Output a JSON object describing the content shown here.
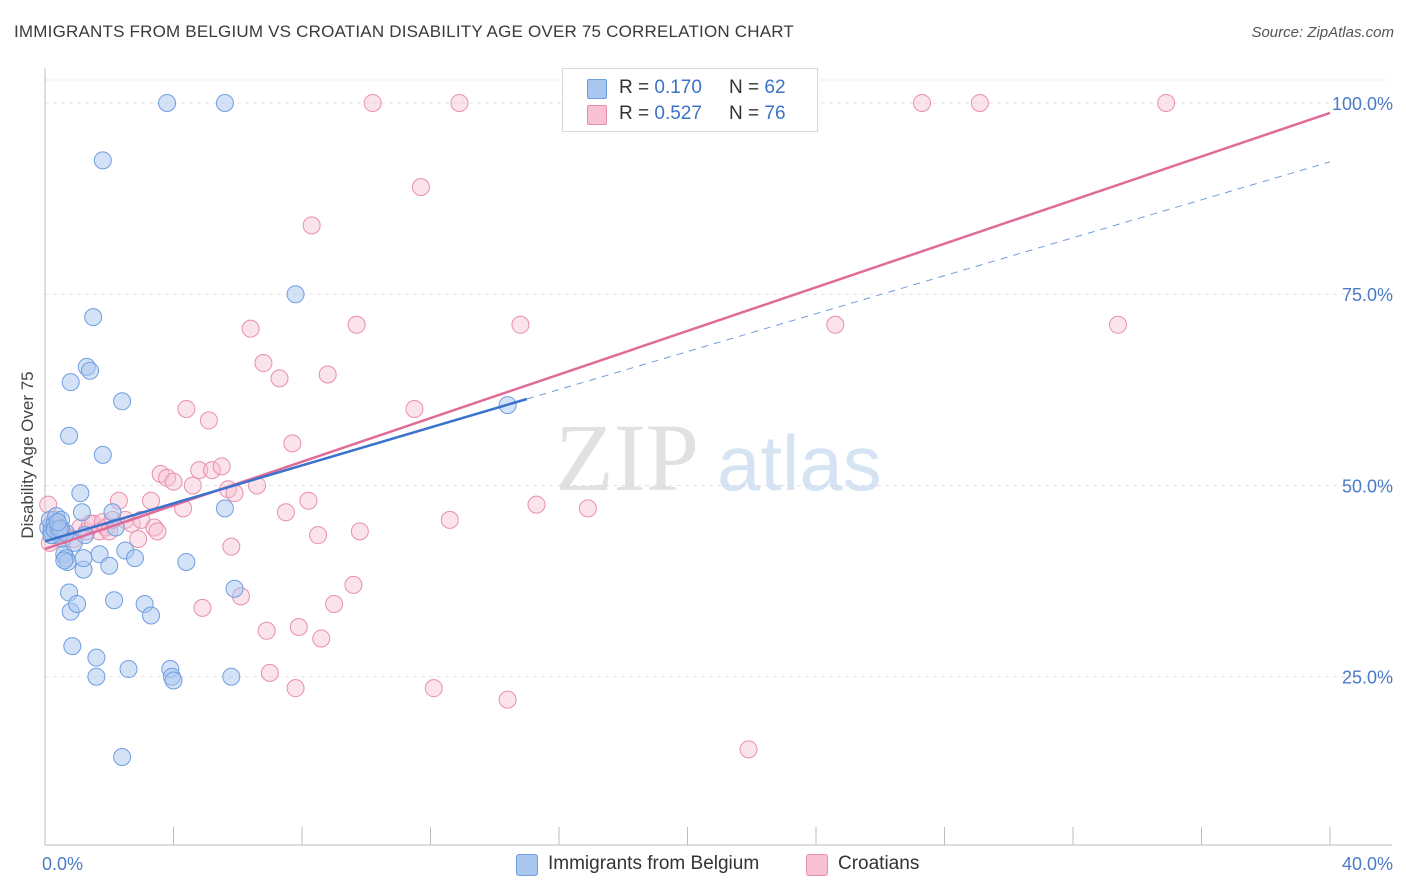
{
  "title": "IMMIGRANTS FROM BELGIUM VS CROATIAN DISABILITY AGE OVER 75 CORRELATION CHART",
  "source": "Source: ZipAtlas.com",
  "watermark": {
    "zip": "ZIP",
    "atlas": "atlas"
  },
  "colors": {
    "blue_fill": "#a9c6ef",
    "blue_stroke": "#6f9ee0",
    "blue_line": "#3a72cc",
    "pink_fill": "#f7c1d3",
    "pink_stroke": "#e98fae",
    "pink_line": "#e06a98",
    "axis_label": "#4a7bc8",
    "grid": "#e3e3e3"
  },
  "legend_top": [
    {
      "r_label": "R = ",
      "r_value": "0.170",
      "n_label": "N = ",
      "n_value": "62"
    },
    {
      "r_label": "R = ",
      "r_value": "0.527",
      "n_label": "N = ",
      "n_value": "76"
    }
  ],
  "legend_bottom": [
    "Immigrants from Belgium",
    "Croatians"
  ],
  "chart_data": {
    "type": "scatter",
    "title": "IMMIGRANTS FROM BELGIUM VS CROATIAN DISABILITY AGE OVER 75 CORRELATION CHART",
    "xlabel": "",
    "ylabel": "Disability Age Over 75",
    "xlim": [
      0,
      40
    ],
    "ylim": [
      3,
      103
    ],
    "x_tick_labels": [
      "0.0%",
      "40.0%"
    ],
    "y_ticks": [
      25,
      50,
      75,
      100
    ],
    "y_tick_labels": [
      "25.0%",
      "50.0%",
      "75.0%",
      "100.0%"
    ],
    "grid": true,
    "legend_placement": "bottom",
    "series": [
      {
        "name": "Immigrants from Belgium",
        "r": 0.17,
        "n": 62,
        "trend": {
          "x": [
            0,
            15
          ],
          "y": [
            42.7,
            61.3
          ]
        },
        "trend_extension": {
          "x": [
            15,
            40
          ],
          "y": [
            61.3,
            92.3
          ]
        },
        "points": [
          [
            0.1,
            44.5
          ],
          [
            0.15,
            45.5
          ],
          [
            0.2,
            44
          ],
          [
            0.25,
            43.5
          ],
          [
            0.3,
            45
          ],
          [
            0.35,
            46
          ],
          [
            0.4,
            44
          ],
          [
            0.45,
            43.5
          ],
          [
            0.5,
            45.5
          ],
          [
            0.55,
            43
          ],
          [
            0.6,
            41
          ],
          [
            0.65,
            40.5
          ],
          [
            0.7,
            40
          ],
          [
            0.75,
            36
          ],
          [
            0.8,
            33.5
          ],
          [
            0.85,
            29
          ],
          [
            0.9,
            42.5
          ],
          [
            1.0,
            34.5
          ],
          [
            1.1,
            49
          ],
          [
            1.15,
            46.5
          ],
          [
            1.2,
            39
          ],
          [
            1.25,
            43.5
          ],
          [
            0.8,
            63.5
          ],
          [
            0.75,
            56.5
          ],
          [
            1.3,
            65.5
          ],
          [
            1.4,
            65
          ],
          [
            1.5,
            72
          ],
          [
            1.6,
            27.5
          ],
          [
            1.6,
            25
          ],
          [
            1.7,
            41
          ],
          [
            1.8,
            54
          ],
          [
            1.8,
            92.5
          ],
          [
            2.0,
            39.5
          ],
          [
            2.1,
            46.5
          ],
          [
            2.15,
            35
          ],
          [
            2.2,
            44.5
          ],
          [
            2.4,
            61
          ],
          [
            2.5,
            41.5
          ],
          [
            2.6,
            26
          ],
          [
            2.8,
            40.5
          ],
          [
            3.1,
            34.5
          ],
          [
            3.3,
            33
          ],
          [
            3.8,
            100
          ],
          [
            3.9,
            26
          ],
          [
            3.95,
            25
          ],
          [
            4.0,
            24.5
          ],
          [
            4.4,
            40
          ],
          [
            5.6,
            100
          ],
          [
            5.6,
            47
          ],
          [
            5.8,
            25
          ],
          [
            5.9,
            36.5
          ],
          [
            7.8,
            75
          ],
          [
            14.4,
            60.5
          ],
          [
            2.4,
            14.5
          ],
          [
            0.2,
            43.5
          ],
          [
            0.3,
            44.2
          ],
          [
            0.6,
            40.2
          ],
          [
            0.65,
            43.8
          ],
          [
            0.5,
            44.4
          ],
          [
            1.2,
            40.5
          ],
          [
            0.45,
            44.3
          ],
          [
            0.4,
            45.2
          ]
        ]
      },
      {
        "name": "Croatians",
        "r": 0.527,
        "n": 76,
        "trend": {
          "x": [
            0,
            40
          ],
          "y": [
            41.7,
            98.7
          ]
        },
        "points": [
          [
            0.1,
            47.5
          ],
          [
            0.2,
            44.5
          ],
          [
            0.3,
            45.5
          ],
          [
            0.5,
            44
          ],
          [
            0.6,
            43.5
          ],
          [
            0.9,
            43
          ],
          [
            1.1,
            44.5
          ],
          [
            1.3,
            44
          ],
          [
            1.4,
            45
          ],
          [
            1.5,
            45
          ],
          [
            1.7,
            44
          ],
          [
            1.8,
            45.2
          ],
          [
            1.9,
            44.5
          ],
          [
            2.0,
            44
          ],
          [
            2.1,
            45.5
          ],
          [
            2.3,
            48
          ],
          [
            2.5,
            45.5
          ],
          [
            2.7,
            45
          ],
          [
            2.9,
            43
          ],
          [
            3.0,
            45.5
          ],
          [
            3.3,
            48
          ],
          [
            3.4,
            44.5
          ],
          [
            3.5,
            44
          ],
          [
            3.6,
            51.5
          ],
          [
            3.8,
            51
          ],
          [
            4.0,
            50.5
          ],
          [
            4.3,
            47
          ],
          [
            4.4,
            60
          ],
          [
            4.6,
            50
          ],
          [
            4.8,
            52
          ],
          [
            4.9,
            34
          ],
          [
            5.1,
            58.5
          ],
          [
            5.2,
            52
          ],
          [
            5.5,
            52.5
          ],
          [
            5.7,
            49.5
          ],
          [
            5.8,
            42
          ],
          [
            5.9,
            49
          ],
          [
            6.1,
            35.5
          ],
          [
            6.4,
            70.5
          ],
          [
            6.6,
            50
          ],
          [
            6.8,
            66
          ],
          [
            6.9,
            31
          ],
          [
            7.0,
            25.5
          ],
          [
            7.3,
            64
          ],
          [
            7.5,
            46.5
          ],
          [
            7.7,
            55.5
          ],
          [
            7.8,
            23.5
          ],
          [
            7.9,
            31.5
          ],
          [
            8.2,
            48
          ],
          [
            8.3,
            84
          ],
          [
            8.5,
            43.5
          ],
          [
            8.6,
            30
          ],
          [
            8.8,
            64.5
          ],
          [
            9.0,
            34.5
          ],
          [
            9.6,
            37
          ],
          [
            9.7,
            71
          ],
          [
            9.8,
            44
          ],
          [
            10.2,
            100
          ],
          [
            11.5,
            60
          ],
          [
            11.7,
            89
          ],
          [
            12.1,
            23.5
          ],
          [
            12.6,
            45.5
          ],
          [
            12.9,
            100
          ],
          [
            14.4,
            22
          ],
          [
            14.8,
            71
          ],
          [
            15.3,
            47.5
          ],
          [
            16.9,
            47
          ],
          [
            20.9,
            100
          ],
          [
            21.9,
            15.5
          ],
          [
            24.6,
            71
          ],
          [
            27.3,
            100
          ],
          [
            29.1,
            100
          ],
          [
            33.4,
            71
          ],
          [
            34.9,
            100
          ],
          [
            0.15,
            42.5
          ],
          [
            0.4,
            43.8
          ]
        ]
      }
    ]
  }
}
